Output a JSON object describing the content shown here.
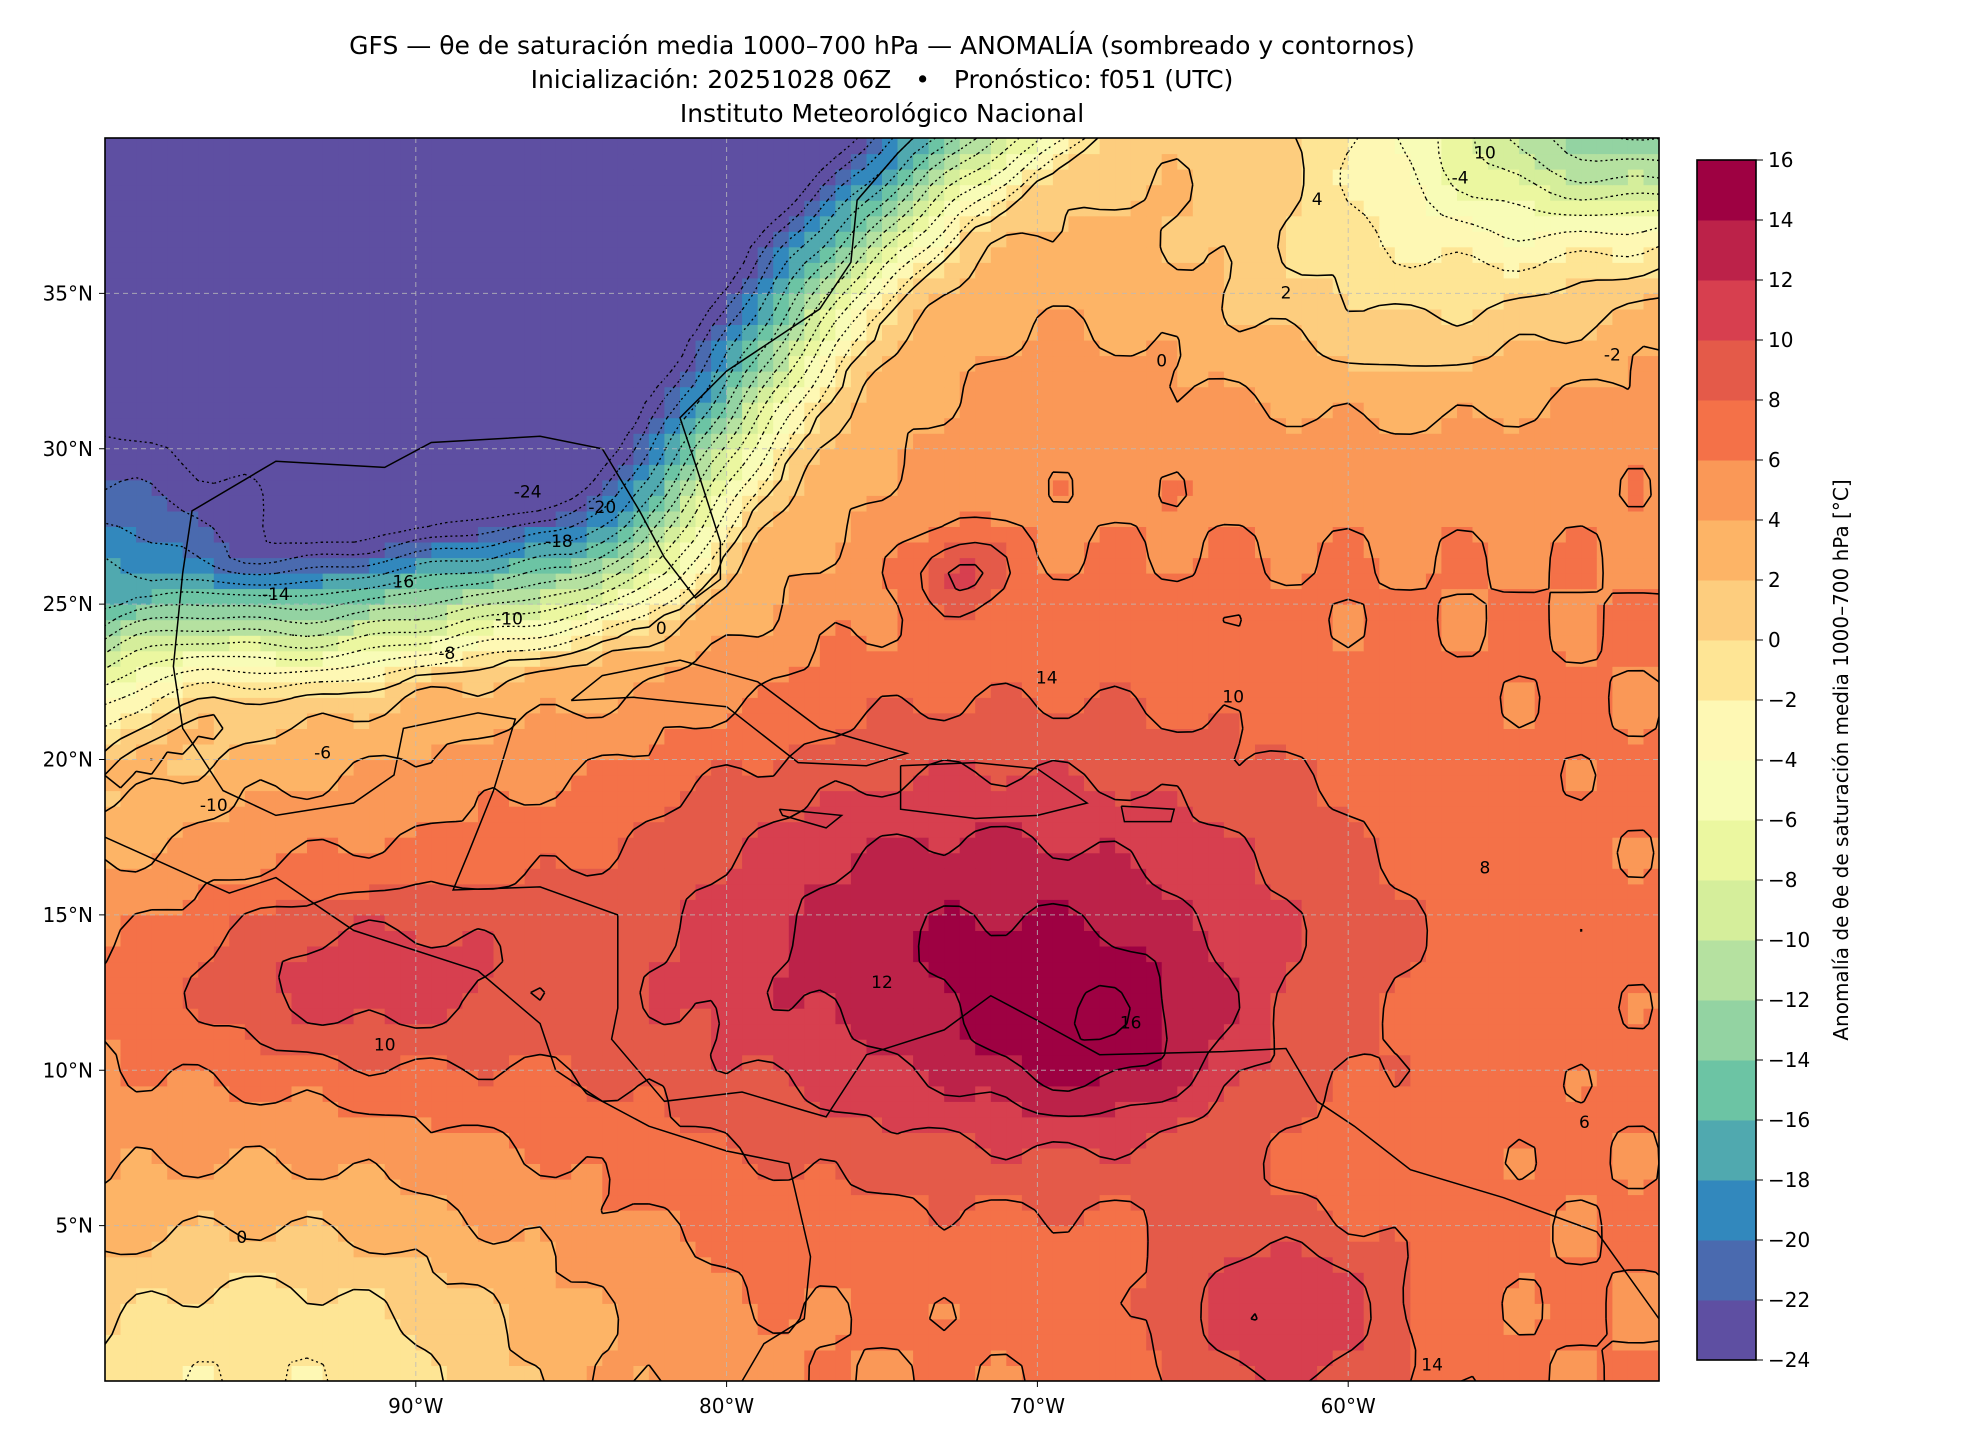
{
  "header": {
    "title_line1": "GFS — θe de saturación media 1000–700 hPa — ANOMALÍA (sombreado y contornos)",
    "title_line2": "Inicialización: 20251028 06Z   •   Pronóstico: f051 (UTC)",
    "title_line3": "Instituto Meteorológico Nacional"
  },
  "chart_data": {
    "type": "heatmap",
    "title": "GFS — θe de saturación media 1000–700 hPa — ANOMALÍA (sombreado y contornos)",
    "projection": "equirectangular",
    "lon_range": [
      -100,
      -50
    ],
    "lat_range": [
      0,
      40
    ],
    "x_ticks": [
      {
        "value": -90,
        "label": "90°W"
      },
      {
        "value": -80,
        "label": "80°W"
      },
      {
        "value": -70,
        "label": "70°W"
      },
      {
        "value": -60,
        "label": "60°W"
      }
    ],
    "y_ticks": [
      {
        "value": 35,
        "label": "35°N"
      },
      {
        "value": 30,
        "label": "30°N"
      },
      {
        "value": 25,
        "label": "25°N"
      },
      {
        "value": 20,
        "label": "20°N"
      },
      {
        "value": 15,
        "label": "15°N"
      },
      {
        "value": 10,
        "label": "10°N"
      },
      {
        "value": 5,
        "label": "5°N"
      }
    ],
    "grid": true,
    "levels": [
      -24,
      -22,
      -20,
      -18,
      -16,
      -14,
      -12,
      -10,
      -8,
      -6,
      -4,
      -2,
      0,
      2,
      4,
      6,
      8,
      10,
      12,
      14,
      16
    ],
    "colors": [
      "#5e4fa2",
      "#4a6aaf",
      "#3288bd",
      "#50a9af",
      "#6cc4a4",
      "#93d3a2",
      "#b5e1a0",
      "#d5ee9b",
      "#ebf7a0",
      "#f8fcb7",
      "#fef8b4",
      "#fee595",
      "#fdcd7e",
      "#fdb466",
      "#fa9857",
      "#f47148",
      "#e45a49",
      "#d73f4f",
      "#bc2249",
      "#9e0142"
    ],
    "colorbar": {
      "label": "Anomalía de θe de saturación media 1000–700 hPa [°C]",
      "ticks": [
        "16",
        "14",
        "12",
        "10",
        "8",
        "6",
        "4",
        "2",
        "0",
        "−2",
        "−4",
        "−6",
        "−8",
        "−10",
        "−12",
        "−14",
        "−16",
        "−18",
        "−20",
        "−22",
        "−24"
      ]
    },
    "contour_labels": [
      {
        "text": "-24",
        "lon": -86.4,
        "lat": 28.6
      },
      {
        "text": "-20",
        "lon": -84,
        "lat": 28.1
      },
      {
        "text": "-18",
        "lon": -85.4,
        "lat": 27
      },
      {
        "text": "16",
        "lon": -90.4,
        "lat": 25.7
      },
      {
        "text": "-14",
        "lon": -94.5,
        "lat": 25.3
      },
      {
        "text": "-10",
        "lon": -87,
        "lat": 24.5
      },
      {
        "text": "-8",
        "lon": -89,
        "lat": 23.4
      },
      {
        "text": "-6",
        "lon": -93,
        "lat": 20.2
      },
      {
        "text": "-10",
        "lon": -96.5,
        "lat": 18.5
      },
      {
        "text": "0",
        "lon": -82.1,
        "lat": 24.2
      },
      {
        "text": "14",
        "lon": -69.7,
        "lat": 22.6
      },
      {
        "text": "16",
        "lon": -67,
        "lat": 11.5
      },
      {
        "text": "12",
        "lon": -75,
        "lat": 12.8
      },
      {
        "text": "10",
        "lon": -91,
        "lat": 10.8
      },
      {
        "text": "10",
        "lon": -63.7,
        "lat": 22
      },
      {
        "text": "8",
        "lon": -55.6,
        "lat": 16.5
      },
      {
        "text": "6",
        "lon": -52.4,
        "lat": 8.3
      },
      {
        "text": "0",
        "lon": -66,
        "lat": 32.8
      },
      {
        "text": "-2",
        "lon": -51.5,
        "lat": 33
      },
      {
        "text": "4",
        "lon": -61,
        "lat": 38
      },
      {
        "text": "2",
        "lon": -62,
        "lat": 35
      },
      {
        "text": "-4",
        "lon": -56.4,
        "lat": 38.7
      },
      {
        "text": "10",
        "lon": -55.6,
        "lat": 39.5
      },
      {
        "text": "14",
        "lon": -57.3,
        "lat": 0.5
      },
      {
        "text": "0",
        "lon": -95.6,
        "lat": 4.6
      }
    ]
  }
}
